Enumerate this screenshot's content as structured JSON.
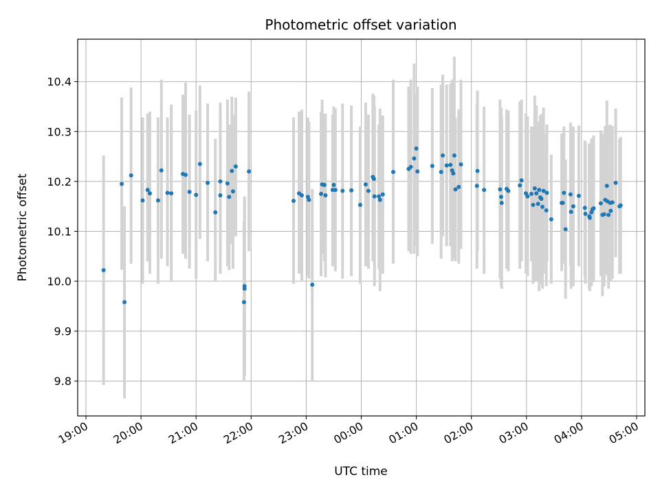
{
  "chart_data": {
    "type": "scatter",
    "title": "Photometric offset variation",
    "xlabel": "UTC time",
    "ylabel": "Photometric offset",
    "grid": true,
    "colors": {
      "point": "#1f77b4",
      "errorbar": "#d3d3d3",
      "grid": "#b0b0b0",
      "axes": "#000000"
    },
    "xlim": [
      18.85,
      29.15
    ],
    "ylim": [
      9.73,
      10.485
    ],
    "x_ticks": [
      {
        "value": 19,
        "label": "19:00"
      },
      {
        "value": 20,
        "label": "20:00"
      },
      {
        "value": 21,
        "label": "21:00"
      },
      {
        "value": 22,
        "label": "22:00"
      },
      {
        "value": 23,
        "label": "23:00"
      },
      {
        "value": 24,
        "label": "00:00"
      },
      {
        "value": 25,
        "label": "01:00"
      },
      {
        "value": 26,
        "label": "02:00"
      },
      {
        "value": 27,
        "label": "03:00"
      },
      {
        "value": 28,
        "label": "04:00"
      },
      {
        "value": 29,
        "label": "05:00"
      }
    ],
    "y_ticks": [
      {
        "value": 9.8,
        "label": "9.8"
      },
      {
        "value": 9.9,
        "label": "9.9"
      },
      {
        "value": 10.0,
        "label": "10.0"
      },
      {
        "value": 10.1,
        "label": "10.1"
      },
      {
        "value": 10.2,
        "label": "10.2"
      },
      {
        "value": 10.3,
        "label": "10.3"
      },
      {
        "value": 10.4,
        "label": "10.4"
      }
    ],
    "points": [
      [
        19.32,
        10.022,
        9.792,
        10.252
      ],
      [
        19.65,
        10.195,
        10.023,
        10.368
      ],
      [
        19.7,
        9.958,
        9.765,
        10.15
      ],
      [
        19.82,
        10.212,
        10.035,
        10.388
      ],
      [
        20.03,
        10.162,
        9.995,
        10.328
      ],
      [
        20.12,
        10.183,
        10.04,
        10.336
      ],
      [
        20.16,
        10.176,
        10.015,
        10.34
      ],
      [
        20.31,
        10.162,
        9.995,
        10.328
      ],
      [
        20.37,
        10.222,
        10.045,
        10.404
      ],
      [
        20.48,
        10.177,
        10.03,
        10.328
      ],
      [
        20.55,
        10.176,
        10.0,
        10.354
      ],
      [
        20.76,
        10.215,
        10.055,
        10.374
      ],
      [
        20.81,
        10.213,
        10.045,
        10.398
      ],
      [
        20.88,
        10.179,
        10.025,
        10.334
      ],
      [
        21.0,
        10.173,
        10.005,
        10.342
      ],
      [
        21.07,
        10.235,
        10.085,
        10.392
      ],
      [
        21.21,
        10.197,
        10.04,
        10.356
      ],
      [
        21.35,
        10.138,
        10.0,
        10.285
      ],
      [
        21.44,
        10.2,
        10.04,
        10.358
      ],
      [
        21.44,
        10.172,
        10.015,
        10.33
      ],
      [
        21.57,
        10.196,
        10.03,
        10.364
      ],
      [
        21.6,
        10.169,
        10.022,
        10.314
      ],
      [
        21.65,
        10.221,
        10.075,
        10.37
      ],
      [
        21.67,
        10.18,
        10.025,
        10.334
      ],
      [
        21.72,
        10.23,
        10.09,
        10.368
      ],
      [
        21.87,
        9.958,
        9.8,
        10.118
      ],
      [
        21.88,
        9.985,
        9.81,
        10.16
      ],
      [
        21.88,
        9.99,
        9.815,
        10.17
      ],
      [
        21.96,
        10.22,
        10.06,
        10.38
      ],
      [
        22.77,
        10.161,
        9.995,
        10.328
      ],
      [
        22.87,
        10.176,
        10.015,
        10.34
      ],
      [
        22.92,
        10.172,
        10.0,
        10.344
      ],
      [
        23.03,
        10.169,
        10.01,
        10.328
      ],
      [
        23.05,
        10.163,
        10.005,
        10.32
      ],
      [
        23.11,
        9.993,
        9.8,
        10.185
      ],
      [
        23.27,
        10.175,
        10.01,
        10.34
      ],
      [
        23.29,
        10.194,
        10.055,
        10.364
      ],
      [
        23.33,
        10.193,
        10.04,
        10.336
      ],
      [
        23.35,
        10.172,
        10.008,
        10.336
      ],
      [
        23.48,
        10.183,
        10.03,
        10.334
      ],
      [
        23.5,
        10.193,
        10.035,
        10.35
      ],
      [
        23.53,
        10.183,
        10.02,
        10.346
      ],
      [
        23.66,
        10.181,
        10.005,
        10.356
      ],
      [
        23.82,
        10.182,
        10.01,
        10.352
      ],
      [
        23.98,
        10.153,
        9.995,
        10.31
      ],
      [
        24.08,
        10.194,
        10.03,
        10.358
      ],
      [
        24.13,
        10.181,
        10.025,
        10.334
      ],
      [
        24.21,
        10.209,
        10.04,
        10.376
      ],
      [
        24.23,
        10.205,
        10.04,
        10.372
      ],
      [
        24.24,
        10.17,
        9.99,
        10.35
      ],
      [
        24.32,
        10.17,
        10.025,
        10.314
      ],
      [
        24.34,
        10.163,
        9.98,
        10.346
      ],
      [
        24.39,
        10.174,
        10.015,
        10.332
      ],
      [
        24.58,
        10.219,
        10.035,
        10.404
      ],
      [
        24.86,
        10.225,
        10.06,
        10.39
      ],
      [
        24.9,
        10.229,
        10.055,
        10.404
      ],
      [
        24.96,
        10.246,
        10.055,
        10.436
      ],
      [
        25.0,
        10.266,
        10.07,
        10.376
      ],
      [
        25.02,
        10.22,
        10.05,
        10.39
      ],
      [
        25.29,
        10.231,
        10.075,
        10.387
      ],
      [
        25.45,
        10.219,
        10.045,
        10.394
      ],
      [
        25.48,
        10.252,
        10.09,
        10.414
      ],
      [
        25.55,
        10.232,
        10.07,
        10.394
      ],
      [
        25.62,
        10.233,
        10.07,
        10.396
      ],
      [
        25.65,
        10.222,
        10.04,
        10.404
      ],
      [
        25.67,
        10.216,
        10.045,
        10.388
      ],
      [
        25.69,
        10.252,
        10.055,
        10.45
      ],
      [
        25.71,
        10.184,
        10.04,
        10.328
      ],
      [
        25.77,
        10.189,
        10.035,
        10.344
      ],
      [
        25.81,
        10.234,
        10.065,
        10.404
      ],
      [
        26.1,
        10.191,
        10.025,
        10.356
      ],
      [
        26.11,
        10.221,
        10.06,
        10.382
      ],
      [
        26.23,
        10.183,
        10.015,
        10.35
      ],
      [
        26.52,
        10.184,
        10.005,
        10.364
      ],
      [
        26.54,
        10.169,
        9.99,
        10.348
      ],
      [
        26.55,
        10.157,
        9.985,
        10.33
      ],
      [
        26.64,
        10.185,
        10.025,
        10.344
      ],
      [
        26.67,
        10.181,
        10.02,
        10.342
      ],
      [
        26.88,
        10.192,
        10.025,
        10.36
      ],
      [
        26.91,
        10.202,
        10.04,
        10.364
      ],
      [
        26.99,
        10.176,
        10.015,
        10.336
      ],
      [
        27.02,
        10.17,
        10.01,
        10.33
      ],
      [
        27.09,
        10.175,
        10.04,
        10.31
      ],
      [
        27.12,
        10.153,
        9.995,
        10.31
      ],
      [
        27.15,
        10.186,
        10.0,
        10.372
      ],
      [
        27.18,
        10.176,
        10.0,
        10.352
      ],
      [
        27.21,
        10.155,
        10.0,
        10.31
      ],
      [
        27.23,
        10.183,
        9.98,
        10.32
      ],
      [
        27.25,
        10.168,
        10.005,
        10.332
      ],
      [
        27.27,
        10.165,
        9.995,
        10.335
      ],
      [
        27.29,
        10.149,
        9.985,
        10.312
      ],
      [
        27.31,
        10.181,
        10.015,
        10.348
      ],
      [
        27.36,
        10.142,
        9.99,
        10.295
      ],
      [
        27.37,
        10.177,
        10.04,
        10.314
      ],
      [
        27.45,
        10.124,
        9.995,
        10.254
      ],
      [
        27.64,
        10.157,
        10.02,
        10.296
      ],
      [
        27.66,
        10.157,
        10.035,
        10.284
      ],
      [
        27.68,
        10.177,
        10.045,
        10.31
      ],
      [
        27.71,
        10.104,
        9.965,
        10.244
      ],
      [
        27.8,
        10.174,
        10.03,
        10.318
      ],
      [
        27.81,
        10.139,
        9.985,
        10.294
      ],
      [
        27.85,
        10.15,
        9.99,
        10.31
      ],
      [
        27.95,
        10.171,
        10.03,
        10.312
      ],
      [
        28.06,
        10.147,
        10.01,
        10.282
      ],
      [
        28.07,
        10.135,
        9.995,
        10.278
      ],
      [
        28.14,
        10.13,
        9.985,
        10.276
      ],
      [
        28.15,
        10.127,
        9.98,
        10.27
      ],
      [
        28.18,
        10.138,
        9.99,
        10.286
      ],
      [
        28.2,
        10.144,
        9.998,
        10.286
      ],
      [
        28.22,
        10.146,
        10.0,
        10.292
      ],
      [
        28.35,
        10.156,
        10.01,
        10.302
      ],
      [
        28.38,
        10.133,
        9.97,
        10.296
      ],
      [
        28.41,
        10.134,
        9.99,
        10.28
      ],
      [
        28.43,
        10.163,
        10.015,
        10.311
      ],
      [
        28.46,
        10.191,
        10.02,
        10.362
      ],
      [
        28.47,
        10.16,
        10.01,
        10.312
      ],
      [
        28.49,
        10.133,
        9.985,
        10.281
      ],
      [
        28.52,
        10.157,
        10.0,
        10.314
      ],
      [
        28.53,
        10.141,
        10.0,
        10.282
      ],
      [
        28.56,
        10.158,
        10.005,
        10.311
      ],
      [
        28.62,
        10.197,
        10.048,
        10.346
      ],
      [
        28.69,
        10.15,
        10.015,
        10.285
      ],
      [
        28.71,
        10.152,
        10.015,
        10.289
      ]
    ]
  }
}
